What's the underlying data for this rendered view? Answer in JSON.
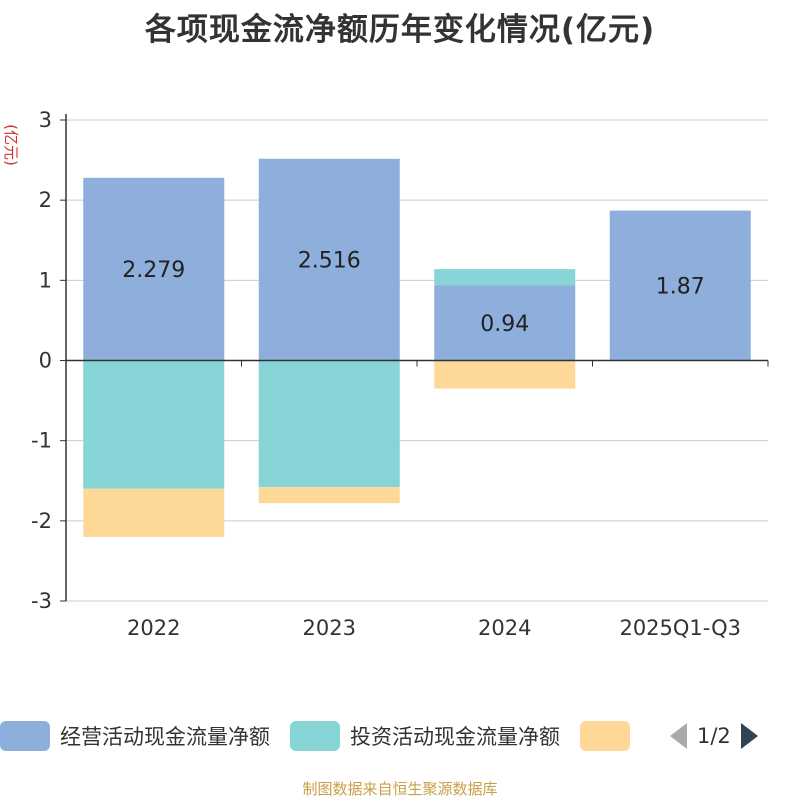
{
  "title": "各项现金流净额历年变化情况(亿元)",
  "source": "制图数据来自恒生聚源数据库",
  "chart_data": {
    "type": "bar",
    "stacked": true,
    "ylabel": "(亿元)",
    "ylim": [
      -3,
      3
    ],
    "yticks": [
      -3,
      -2,
      -1,
      0,
      1,
      2,
      3
    ],
    "categories": [
      "2022",
      "2023",
      "2024",
      "2025Q1-Q3"
    ],
    "series": [
      {
        "name": "经营活动现金流量净额",
        "color": "#8eaedb",
        "values": [
          2.279,
          2.516,
          0.94,
          1.87
        ],
        "labels": [
          "2.279",
          "2.516",
          "0.94",
          "1.87"
        ]
      },
      {
        "name": "投资活动现金流量净额",
        "color": "#86d4d6",
        "values": [
          -1.6,
          -1.58,
          0.2,
          null
        ]
      },
      {
        "name": "",
        "color": "#fed897",
        "values": [
          -0.6,
          -0.2,
          -0.35,
          null
        ]
      }
    ],
    "legend_position": "bottom",
    "grid": true
  },
  "legend": {
    "items": [
      "经营活动现金流量净额",
      "投资活动现金流量净额",
      ""
    ],
    "colors": [
      "#8eaedb",
      "#86d4d6",
      "#fed897"
    ],
    "page_indicator": "1/2"
  }
}
